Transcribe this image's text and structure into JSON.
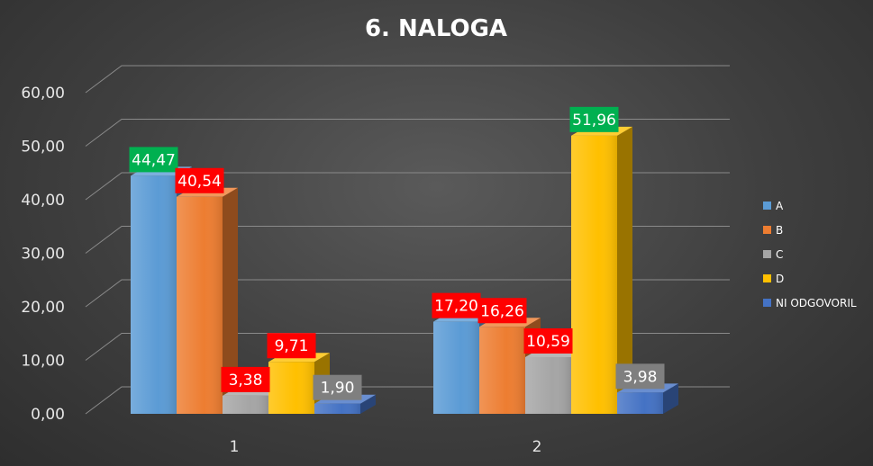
{
  "chart_data": {
    "type": "bar",
    "title": "6. NALOGA",
    "categories": [
      "1",
      "2"
    ],
    "series": [
      {
        "name": "A",
        "values": [
          44.47,
          17.2
        ],
        "labels": [
          "44,47",
          "17,20"
        ],
        "color": "#5b9bd5",
        "label_colors": [
          "#00b050",
          "#ff0000"
        ]
      },
      {
        "name": "B",
        "values": [
          40.54,
          16.26
        ],
        "labels": [
          "40,54",
          "16,26"
        ],
        "color": "#ed7d31",
        "label_colors": [
          "#ff0000",
          "#ff0000"
        ]
      },
      {
        "name": "C",
        "values": [
          3.38,
          10.59
        ],
        "labels": [
          "3,38",
          "10,59"
        ],
        "color": "#a5a5a5",
        "label_colors": [
          "#ff0000",
          "#ff0000"
        ]
      },
      {
        "name": "D",
        "values": [
          9.71,
          51.96
        ],
        "labels": [
          "9,71",
          "51,96"
        ],
        "color": "#ffc000",
        "label_colors": [
          "#ff0000",
          "#00b050"
        ]
      },
      {
        "name": "NI ODGOVORIL",
        "values": [
          1.9,
          3.98
        ],
        "labels": [
          "1,90",
          "3,98"
        ],
        "color": "#4472c4",
        "label_colors": [
          "#7f7f7f",
          "#7f7f7f"
        ]
      }
    ],
    "y_ticks": [
      "0,00",
      "10,00",
      "20,00",
      "30,00",
      "40,00",
      "50,00",
      "60,00"
    ],
    "ylim": [
      0,
      60
    ],
    "grid": true,
    "legend_position": "right",
    "style": "3d-clustered-column"
  }
}
